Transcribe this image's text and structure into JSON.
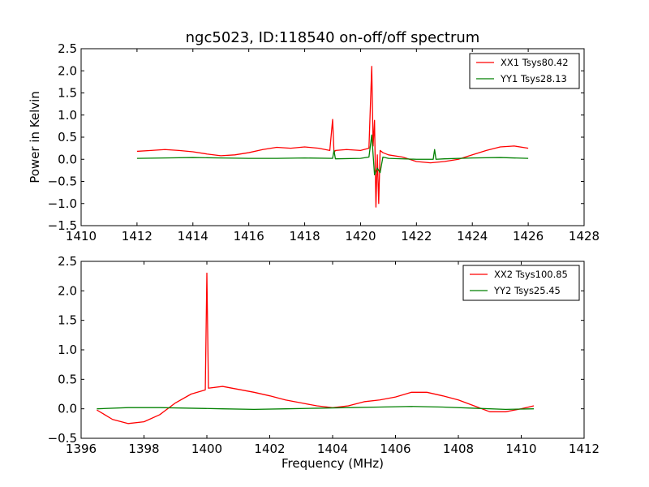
{
  "chart_data": [
    {
      "type": "line",
      "title": "ngc5023, ID:118540 on-off/off spectrum",
      "xlabel": "",
      "ylabel": "Power in Kelvin",
      "xlim": [
        1410,
        1428
      ],
      "ylim": [
        -1.5,
        2.5
      ],
      "xticks": [
        1410,
        1412,
        1414,
        1416,
        1418,
        1420,
        1422,
        1424,
        1426,
        1428
      ],
      "yticks": [
        -1.5,
        -1.0,
        -0.5,
        0.0,
        0.5,
        1.0,
        1.5,
        2.0,
        2.5
      ],
      "grid": false,
      "legend_position": "top-right",
      "series": [
        {
          "name": "XX1 Tsys80.42",
          "color": "#ff0000",
          "x": [
            1412.0,
            1412.5,
            1413.0,
            1413.5,
            1414.0,
            1414.5,
            1415.0,
            1415.5,
            1416.0,
            1416.5,
            1417.0,
            1417.5,
            1418.0,
            1418.5,
            1418.9,
            1419.0,
            1419.05,
            1419.1,
            1419.5,
            1420.0,
            1420.3,
            1420.4,
            1420.45,
            1420.5,
            1420.55,
            1420.6,
            1420.65,
            1420.7,
            1420.8,
            1421.0,
            1421.5,
            1422.0,
            1422.5,
            1423.0,
            1423.5,
            1424.0,
            1424.5,
            1425.0,
            1425.5,
            1426.0
          ],
          "y": [
            0.18,
            0.2,
            0.22,
            0.2,
            0.17,
            0.12,
            0.08,
            0.1,
            0.15,
            0.22,
            0.27,
            0.25,
            0.28,
            0.25,
            0.2,
            0.9,
            0.15,
            0.2,
            0.22,
            0.2,
            0.25,
            2.1,
            0.3,
            0.88,
            -1.08,
            0.1,
            -1.0,
            0.2,
            0.15,
            0.1,
            0.05,
            -0.05,
            -0.08,
            -0.05,
            0.0,
            0.1,
            0.2,
            0.28,
            0.3,
            0.25
          ]
        },
        {
          "name": "YY1 Tsys28.13",
          "color": "#008000",
          "x": [
            1412.0,
            1413.0,
            1414.0,
            1415.0,
            1416.0,
            1417.0,
            1418.0,
            1419.0,
            1419.05,
            1419.1,
            1420.0,
            1420.3,
            1420.4,
            1420.5,
            1420.6,
            1420.7,
            1420.8,
            1421.0,
            1422.0,
            1422.6,
            1422.65,
            1422.7,
            1423.0,
            1424.0,
            1425.0,
            1426.0
          ],
          "y": [
            0.02,
            0.03,
            0.04,
            0.03,
            0.02,
            0.02,
            0.03,
            0.02,
            0.2,
            0.01,
            0.02,
            0.05,
            0.55,
            -0.35,
            -0.2,
            -0.3,
            0.05,
            0.02,
            0.0,
            0.0,
            0.22,
            0.0,
            0.01,
            0.03,
            0.04,
            0.02
          ]
        }
      ]
    },
    {
      "type": "line",
      "title": "",
      "xlabel": "Frequency (MHz)",
      "ylabel": "",
      "xlim": [
        1396,
        1412
      ],
      "ylim": [
        -0.5,
        2.5
      ],
      "xticks": [
        1396,
        1398,
        1400,
        1402,
        1404,
        1406,
        1408,
        1410,
        1412
      ],
      "yticks": [
        -0.5,
        0.0,
        0.5,
        1.0,
        1.5,
        2.0,
        2.5
      ],
      "grid": false,
      "legend_position": "top-right",
      "series": [
        {
          "name": "XX2 Tsys100.85",
          "color": "#ff0000",
          "x": [
            1396.5,
            1397.0,
            1397.5,
            1398.0,
            1398.5,
            1399.0,
            1399.5,
            1399.95,
            1400.0,
            1400.05,
            1400.5,
            1401.0,
            1401.5,
            1402.0,
            1402.5,
            1403.0,
            1403.5,
            1404.0,
            1404.5,
            1405.0,
            1405.5,
            1406.0,
            1406.5,
            1407.0,
            1407.5,
            1408.0,
            1408.5,
            1409.0,
            1409.5,
            1410.0,
            1410.4
          ],
          "y": [
            -0.02,
            -0.18,
            -0.25,
            -0.22,
            -0.1,
            0.1,
            0.25,
            0.32,
            2.3,
            0.35,
            0.38,
            0.33,
            0.28,
            0.22,
            0.15,
            0.1,
            0.05,
            0.02,
            0.05,
            0.12,
            0.15,
            0.2,
            0.28,
            0.28,
            0.22,
            0.15,
            0.05,
            -0.05,
            -0.05,
            0.0,
            0.05
          ]
        },
        {
          "name": "YY2 Tsys25.45",
          "color": "#008000",
          "x": [
            1396.5,
            1397.5,
            1398.5,
            1399.5,
            1400.5,
            1401.5,
            1402.5,
            1403.5,
            1404.5,
            1405.5,
            1406.5,
            1407.5,
            1408.5,
            1409.5,
            1410.4
          ],
          "y": [
            0.0,
            0.02,
            0.02,
            0.01,
            0.0,
            -0.01,
            0.0,
            0.01,
            0.02,
            0.03,
            0.04,
            0.03,
            0.01,
            -0.01,
            0.0
          ]
        }
      ]
    }
  ]
}
